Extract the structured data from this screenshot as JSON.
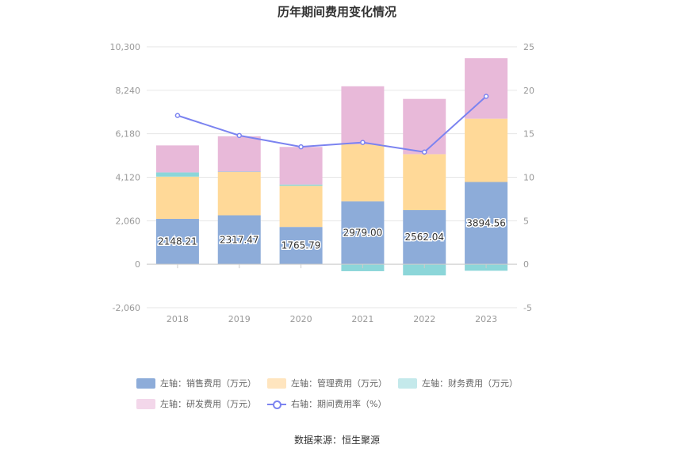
{
  "chart_data": {
    "type": "bar",
    "title": "历年期间费用变化情况",
    "categories": [
      "2018",
      "2019",
      "2020",
      "2021",
      "2022",
      "2023"
    ],
    "left_axis": {
      "ticks": [
        "-2,060",
        "0",
        "2,060",
        "4,120",
        "6,180",
        "8,240",
        "10,300"
      ],
      "ylim": [
        -2060,
        10300
      ]
    },
    "right_axis": {
      "ticks": [
        "-5",
        "0",
        "5",
        "10",
        "15",
        "20",
        "25"
      ],
      "ylim": [
        -5,
        25
      ]
    },
    "series": [
      {
        "name": "左轴：销售费用（万元）",
        "color": "#8dacd9",
        "values": [
          2148.21,
          2317.47,
          1765.79,
          2979.0,
          2562.04,
          3894.56
        ],
        "labels": [
          "2148.21",
          "2317.47",
          "1765.79",
          "2979.00",
          "2562.04",
          "3894.56"
        ]
      },
      {
        "name": "左轴：管理费用（万元）",
        "color": "#ffd998",
        "values": [
          2000,
          2050,
          1950,
          2700,
          2650,
          3000
        ]
      },
      {
        "name": "左轴：财务费用（万元）",
        "color": "#8cd6d9",
        "values": [
          200,
          15,
          60,
          -330,
          -530,
          -310
        ]
      },
      {
        "name": "左轴：研发费用（万元）",
        "color": "#e8b9d9",
        "values": [
          1280,
          1680,
          1780,
          2750,
          2620,
          2870
        ]
      },
      {
        "name": "右轴：期间费用率（%）",
        "color": "#7b83f0",
        "type": "line",
        "axis": "right",
        "values": [
          17.1,
          14.8,
          13.5,
          14.0,
          12.9,
          19.3
        ]
      }
    ],
    "grid": true,
    "legend_position": "bottom"
  },
  "source": "数据来源：恒生聚源"
}
